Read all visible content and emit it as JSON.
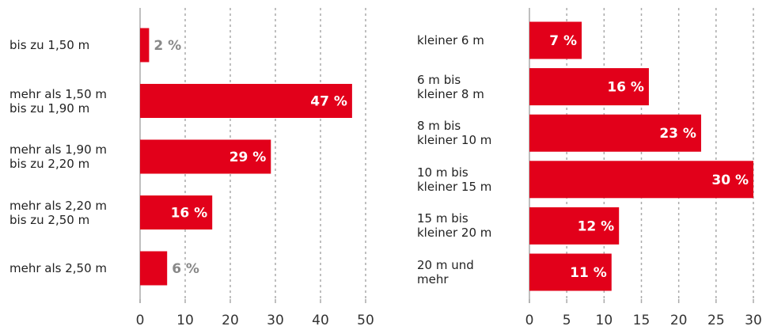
{
  "chart_data": [
    {
      "type": "bar",
      "orientation": "horizontal",
      "categories": [
        "bis zu 1,50 m",
        "mehr als 1,50 m\nbis zu 1,90 m",
        "mehr als 1,90 m\nbis zu 2,20 m",
        "mehr als 2,20 m\nbis zu 2,50 m",
        "mehr als 2,50 m"
      ],
      "values": [
        2,
        47,
        29,
        16,
        6
      ],
      "value_labels": [
        "2 %",
        "47 %",
        "29 %",
        "16 %",
        "6 %"
      ],
      "color": "#e2001a",
      "xlim": [
        0,
        50
      ],
      "xticks": [
        0,
        10,
        20,
        30,
        40,
        50
      ],
      "grid": true
    },
    {
      "type": "bar",
      "orientation": "horizontal",
      "categories": [
        "kleiner 6 m",
        "6 m bis\nkleiner 8 m",
        "8 m bis\nkleiner 10 m",
        "10 m bis\nkleiner 15 m",
        "15 m bis\nkleiner 20 m",
        "20 m und\nmehr"
      ],
      "values": [
        7,
        16,
        23,
        30,
        12,
        11
      ],
      "value_labels": [
        "7 %",
        "16 %",
        "23 %",
        "30 %",
        "12 %",
        "11 %"
      ],
      "color": "#e2001a",
      "xlim": [
        0,
        30
      ],
      "xticks": [
        0,
        5,
        10,
        15,
        20,
        25,
        30
      ],
      "grid": true
    }
  ]
}
